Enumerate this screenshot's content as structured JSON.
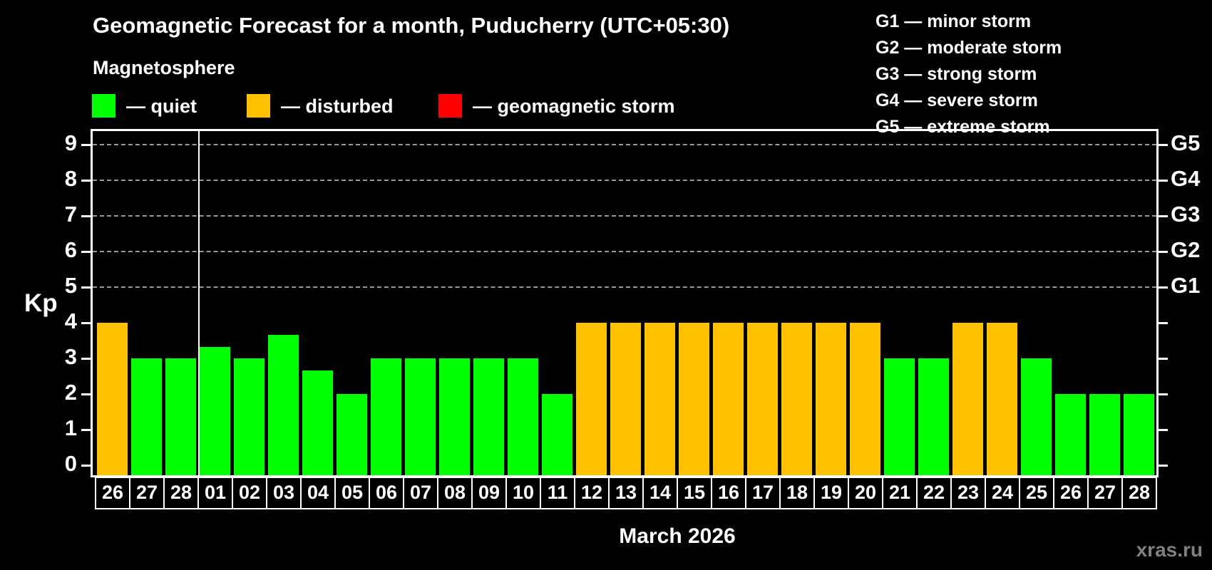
{
  "header": {
    "title": "Geomagnetic Forecast for a month, Puducherry (UTC+05:30)",
    "subtitle": "Magnetosphere"
  },
  "legend": [
    {
      "key": "quiet",
      "label": "— quiet",
      "color": "#00ff00"
    },
    {
      "key": "disturbed",
      "label": "— disturbed",
      "color": "#ffc000"
    },
    {
      "key": "storm",
      "label": "— geomagnetic storm",
      "color": "#ff0000"
    }
  ],
  "g_legend": [
    "G1 — minor storm",
    "G2 — moderate storm",
    "G3 — strong storm",
    "G4 — severe storm",
    "G5 — extreme storm"
  ],
  "axis": {
    "kp_label": "Kp",
    "month_label": "March 2026"
  },
  "colors": {
    "quiet": "#00ff00",
    "disturbed": "#ffc000",
    "storm": "#ff0000",
    "axis": "#ffffff",
    "grid": "#cccccc",
    "background": "#000000",
    "watermark": "#808080"
  },
  "watermark": "xras.ru",
  "chart_data": {
    "type": "bar",
    "title": "Geomagnetic Forecast for a month, Puducherry (UTC+05:30)",
    "xlabel": "March 2026",
    "ylabel": "Kp",
    "ylim": [
      0,
      9
    ],
    "y_ticks": [
      0,
      1,
      2,
      3,
      4,
      5,
      6,
      7,
      8,
      9
    ],
    "grid_levels_kp": [
      5,
      6,
      7,
      8,
      9
    ],
    "right_axis": [
      {
        "label": "G5",
        "kp": 9
      },
      {
        "label": "G4",
        "kp": 8
      },
      {
        "label": "G3",
        "kp": 7
      },
      {
        "label": "G2",
        "kp": 6
      },
      {
        "label": "G1",
        "kp": 5
      }
    ],
    "month_start_index": 3,
    "bars": [
      {
        "day": "26",
        "kp": 4,
        "status": "disturbed"
      },
      {
        "day": "27",
        "kp": 3,
        "status": "quiet"
      },
      {
        "day": "28",
        "kp": 3,
        "status": "quiet"
      },
      {
        "day": "01",
        "kp": 3.33,
        "status": "quiet"
      },
      {
        "day": "02",
        "kp": 3,
        "status": "quiet"
      },
      {
        "day": "03",
        "kp": 3.67,
        "status": "quiet"
      },
      {
        "day": "04",
        "kp": 2.67,
        "status": "quiet"
      },
      {
        "day": "05",
        "kp": 2,
        "status": "quiet"
      },
      {
        "day": "06",
        "kp": 3,
        "status": "quiet"
      },
      {
        "day": "07",
        "kp": 3,
        "status": "quiet"
      },
      {
        "day": "08",
        "kp": 3,
        "status": "quiet"
      },
      {
        "day": "09",
        "kp": 3,
        "status": "quiet"
      },
      {
        "day": "10",
        "kp": 3,
        "status": "quiet"
      },
      {
        "day": "11",
        "kp": 2,
        "status": "quiet"
      },
      {
        "day": "12",
        "kp": 4,
        "status": "disturbed"
      },
      {
        "day": "13",
        "kp": 4,
        "status": "disturbed"
      },
      {
        "day": "14",
        "kp": 4,
        "status": "disturbed"
      },
      {
        "day": "15",
        "kp": 4,
        "status": "disturbed"
      },
      {
        "day": "16",
        "kp": 4,
        "status": "disturbed"
      },
      {
        "day": "17",
        "kp": 4,
        "status": "disturbed"
      },
      {
        "day": "18",
        "kp": 4,
        "status": "disturbed"
      },
      {
        "day": "19",
        "kp": 4,
        "status": "disturbed"
      },
      {
        "day": "20",
        "kp": 4,
        "status": "disturbed"
      },
      {
        "day": "21",
        "kp": 3,
        "status": "quiet"
      },
      {
        "day": "22",
        "kp": 3,
        "status": "quiet"
      },
      {
        "day": "23",
        "kp": 4,
        "status": "disturbed"
      },
      {
        "day": "24",
        "kp": 4,
        "status": "disturbed"
      },
      {
        "day": "25",
        "kp": 3,
        "status": "quiet"
      },
      {
        "day": "26",
        "kp": 2,
        "status": "quiet"
      },
      {
        "day": "27",
        "kp": 2,
        "status": "quiet"
      },
      {
        "day": "28",
        "kp": 2,
        "status": "quiet"
      }
    ]
  }
}
